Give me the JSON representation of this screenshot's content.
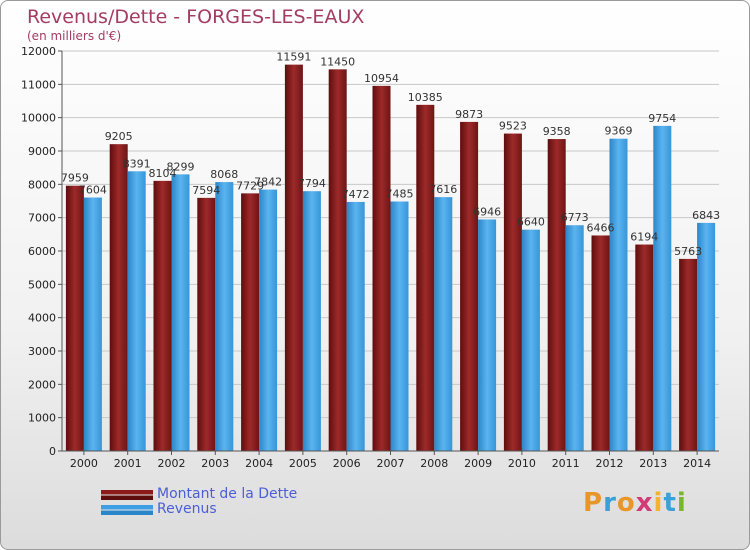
{
  "header": {
    "title": "Revenus/Dette - FORGES-LES-EAUX",
    "subtitle": "(en milliers d'€)"
  },
  "brand": {
    "text": "Proxiti",
    "colors": [
      "#e8962a",
      "#3aa0d8",
      "#e8962a",
      "#d23a78",
      "#f0b431",
      "#3aa0d8",
      "#77b82a"
    ]
  },
  "chart_data": {
    "type": "bar",
    "title": "Revenus/Dette - FORGES-LES-EAUX",
    "subtitle": "(en milliers d'€)",
    "categories": [
      "2000",
      "2001",
      "2002",
      "2003",
      "2004",
      "2005",
      "2006",
      "2007",
      "2008",
      "2009",
      "2010",
      "2011",
      "2012",
      "2013",
      "2014"
    ],
    "series": [
      {
        "name": "Montant de la Dette",
        "color": "#8b1a1a",
        "values": [
          7959,
          9205,
          8104,
          7594,
          7729,
          11591,
          11450,
          10954,
          10385,
          9873,
          9523,
          9358,
          6466,
          6194,
          5763
        ]
      },
      {
        "name": "Revenus",
        "color": "#3d9ee3",
        "values": [
          7604,
          8391,
          8299,
          8068,
          7842,
          7794,
          7472,
          7485,
          7616,
          6946,
          6640,
          6773,
          9369,
          9754,
          6843
        ]
      }
    ],
    "ylim": [
      0,
      12000
    ],
    "yticks": [
      0,
      1000,
      2000,
      3000,
      4000,
      5000,
      6000,
      7000,
      8000,
      9000,
      10000,
      11000,
      12000
    ],
    "grid": true,
    "legend": "bottom-left"
  }
}
